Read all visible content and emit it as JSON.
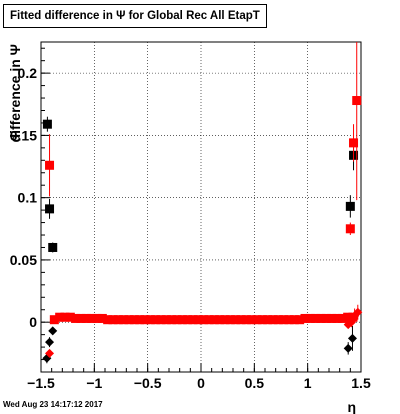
{
  "header": {
    "title": "Fitted difference in  Ψ  for Global Rec All EtapT",
    "timestamp": "Wed Aug 23 14:17:12 2017"
  },
  "chart_data": {
    "type": "scatter",
    "title": "Fitted difference in  Ψ  for Global Rec All EtapT",
    "xlabel": "η",
    "ylabel": "difference in  Ψ",
    "xlim": [
      -1.5,
      1.5
    ],
    "ylim": [
      -0.04,
      0.225
    ],
    "grid": true,
    "x_ticks": [
      -1.5,
      -1,
      -0.5,
      0,
      0.5,
      1,
      1.5
    ],
    "x_tick_labels": [
      "−1.5",
      "−1",
      "−0.5",
      "0",
      "0.5",
      "1",
      "1.5"
    ],
    "y_ticks": [
      0,
      0.05,
      0.1,
      0.15,
      0.2
    ],
    "y_tick_labels": [
      "0",
      "0.05",
      "0.1",
      "0.15",
      "0.2"
    ],
    "colors": {
      "black": "#000000",
      "red": "#ff0000"
    },
    "series": [
      {
        "color": "#000000",
        "marker_shape": "square",
        "points": [
          {
            "x": -1.44,
            "y": 0.159,
            "err": 0.006
          },
          {
            "x": -1.42,
            "y": 0.091,
            "err": 0.008
          },
          {
            "x": -1.39,
            "y": 0.06,
            "err": 0.004
          },
          {
            "x": 1.4,
            "y": 0.093,
            "err": 0.009
          },
          {
            "x": 1.43,
            "y": 0.134,
            "err": 0.012
          }
        ]
      },
      {
        "color": "#000000",
        "marker_shape": "diamond",
        "points": [
          {
            "x": -1.445,
            "y": -0.029,
            "err": 0.004
          },
          {
            "x": -1.42,
            "y": -0.016,
            "err": 0.004
          },
          {
            "x": -1.39,
            "y": -0.007,
            "err": 0.003
          },
          {
            "x": 1.38,
            "y": -0.021,
            "err": 0.005
          },
          {
            "x": 1.42,
            "y": -0.013,
            "err": 0.01
          }
        ]
      },
      {
        "color": "#ff0000",
        "marker_shape": "square",
        "points": [
          {
            "x": -1.42,
            "y": 0.126,
            "err": 0.025
          },
          {
            "x": 1.4,
            "y": 0.075,
            "err": 0.005
          },
          {
            "x": 1.43,
            "y": 0.144,
            "err": 0.015
          },
          {
            "x": 1.46,
            "y": 0.178,
            "err": 0.08
          }
        ]
      },
      {
        "color": "#ff0000",
        "marker_shape": "diamond",
        "points": [
          {
            "x": -1.42,
            "y": -0.025,
            "err": 0.003
          },
          {
            "x": 1.38,
            "y": -0.002,
            "err": 0.002
          },
          {
            "x": 1.41,
            "y": 0.0,
            "err": 0.004
          },
          {
            "x": 1.44,
            "y": 0.005,
            "err": 0.006
          },
          {
            "x": 1.47,
            "y": 0.008,
            "err": 0.006
          }
        ]
      },
      {
        "color": "#ff0000",
        "marker_shape": "square",
        "x_start": -1.375,
        "x_step": 0.05,
        "y": [
          0.002,
          0.004,
          0.004,
          0.004,
          0.003,
          0.003,
          0.003,
          0.003,
          0.003,
          0.003,
          0.002,
          0.002,
          0.002,
          0.002,
          0.002,
          0.002,
          0.002,
          0.002,
          0.002,
          0.002,
          0.002,
          0.002,
          0.002,
          0.002,
          0.002,
          0.002,
          0.002,
          0.002,
          0.002,
          0.002,
          0.002,
          0.002,
          0.002,
          0.002,
          0.002,
          0.002,
          0.002,
          0.002,
          0.002,
          0.002,
          0.002,
          0.002,
          0.002,
          0.002,
          0.002,
          0.002,
          0.002,
          0.003,
          0.003,
          0.003,
          0.003,
          0.003,
          0.003,
          0.003,
          0.003,
          0.004,
          0.004
        ]
      }
    ]
  }
}
